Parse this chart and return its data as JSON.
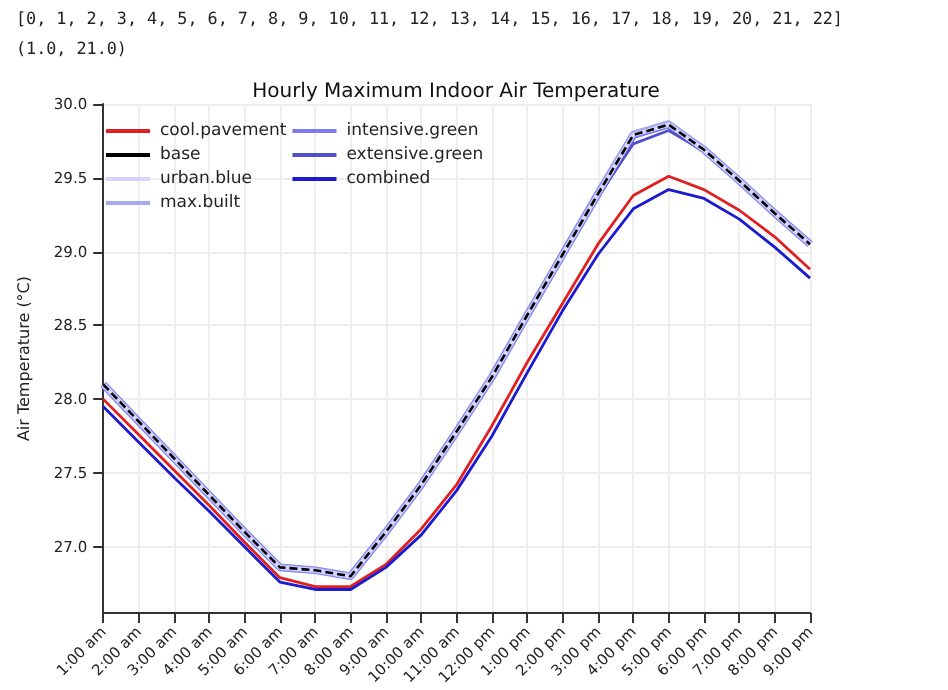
{
  "chart_data": {
    "type": "line",
    "title": "Hourly Maximum Indoor Air Temperature",
    "ylabel": "Air Temperature (°C)",
    "annotations": [
      "[0, 1, 2, 3, 4, 5, 6, 7, 8, 9, 10, 11, 12, 13, 14, 15, 16, 17, 18, 19, 20, 21, 22]",
      "(1.0, 21.0)"
    ],
    "categories": [
      "1:00 am",
      "2:00 am",
      "3:00 am",
      "4:00 am",
      "5:00 am",
      "6:00 am",
      "7:00 am",
      "8:00 am",
      "9:00 am",
      "10:00 am",
      "11:00 am",
      "12:00 pm",
      "1:00 pm",
      "2:00 pm",
      "3:00 pm",
      "4:00 pm",
      "5:00 pm",
      "6:00 pm",
      "7:00 pm",
      "8:00 pm",
      "9:00 pm"
    ],
    "series": [
      {
        "name": "cool.pavement",
        "color": "#e02020",
        "values": [
          28.0,
          27.76,
          27.52,
          27.28,
          27.03,
          26.79,
          26.73,
          26.73,
          26.88,
          27.12,
          27.42,
          27.82,
          28.25,
          28.65,
          29.05,
          29.38,
          29.51,
          29.42,
          29.28,
          29.1,
          28.88
        ]
      },
      {
        "name": "base",
        "color": "#000000",
        "line_style": "dashed",
        "values": [
          28.1,
          27.85,
          27.6,
          27.35,
          27.1,
          26.86,
          26.84,
          26.8,
          27.1,
          27.42,
          27.78,
          28.15,
          28.57,
          28.98,
          29.39,
          29.79,
          29.86,
          29.69,
          29.48,
          29.26,
          29.05
        ]
      },
      {
        "name": "urban.blue",
        "color": "#d4d4ff",
        "values": [
          28.1,
          27.85,
          27.6,
          27.35,
          27.1,
          26.86,
          26.84,
          26.8,
          27.1,
          27.42,
          27.78,
          28.15,
          28.57,
          28.98,
          29.39,
          29.79,
          29.86,
          29.69,
          29.48,
          29.26,
          29.05
        ]
      },
      {
        "name": "max.built",
        "color": "#a8a8f0",
        "values": [
          28.1,
          27.85,
          27.6,
          27.35,
          27.1,
          26.86,
          26.84,
          26.8,
          27.1,
          27.42,
          27.78,
          28.15,
          28.57,
          28.98,
          29.39,
          29.8,
          29.87,
          29.69,
          29.48,
          29.26,
          29.05
        ]
      },
      {
        "name": "intensive.green",
        "color": "#7b7bf0",
        "values": [
          28.1,
          27.85,
          27.6,
          27.35,
          27.1,
          26.86,
          26.84,
          26.8,
          27.1,
          27.42,
          27.78,
          28.15,
          28.57,
          28.98,
          29.39,
          29.79,
          29.86,
          29.69,
          29.48,
          29.26,
          29.05
        ]
      },
      {
        "name": "extensive.green",
        "color": "#5050c8",
        "values": [
          28.1,
          27.85,
          27.6,
          27.35,
          27.1,
          26.86,
          26.84,
          26.8,
          27.1,
          27.42,
          27.77,
          28.14,
          28.56,
          28.97,
          29.37,
          29.73,
          29.82,
          29.68,
          29.48,
          29.26,
          29.05
        ]
      },
      {
        "name": "combined",
        "color": "#1a1ad0",
        "values": [
          27.95,
          27.71,
          27.47,
          27.24,
          27.0,
          26.76,
          26.71,
          26.71,
          26.86,
          27.08,
          27.38,
          27.75,
          28.18,
          28.6,
          28.98,
          29.29,
          29.42,
          29.36,
          29.22,
          29.03,
          28.82
        ]
      }
    ],
    "ylim": [
      26.55,
      30.0
    ],
    "yticks": [
      {
        "value": 27,
        "label": "27.0"
      },
      27.5,
      {
        "value": 28,
        "label": "28.0"
      },
      28.5,
      {
        "value": 29,
        "label": "29.0"
      },
      29.5,
      {
        "value": 30,
        "label": "30.0"
      }
    ],
    "grid": true,
    "legend": "top left",
    "marker": "none"
  }
}
